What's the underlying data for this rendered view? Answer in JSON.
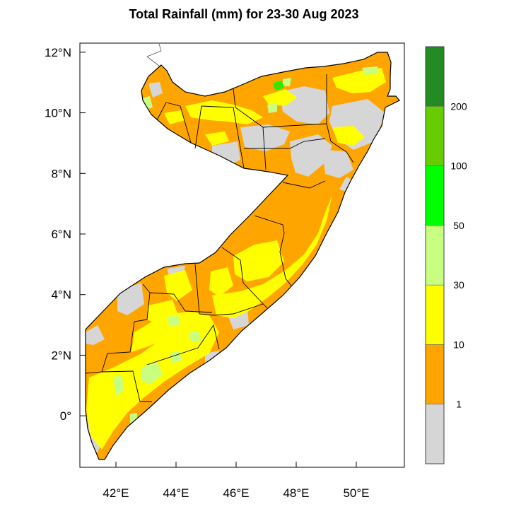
{
  "title": "Total Rainfall (mm) for 23-30 Aug 2023",
  "map": {
    "lon_range": [
      40.8,
      51.6
    ],
    "lat_range": [
      -1.7,
      12.3
    ],
    "x_ticks": [
      {
        "lon": 42,
        "label": "42°E"
      },
      {
        "lon": 44,
        "label": "44°E"
      },
      {
        "lon": 46,
        "label": "46°E"
      },
      {
        "lon": 48,
        "label": "48°E"
      },
      {
        "lon": 50,
        "label": "50°E"
      }
    ],
    "y_ticks": [
      {
        "lat": 12,
        "label": "12°N"
      },
      {
        "lat": 10,
        "label": "10°N"
      },
      {
        "lat": 8,
        "label": "8°N"
      },
      {
        "lat": 6,
        "label": "6°N"
      },
      {
        "lat": 4,
        "label": "4°N"
      },
      {
        "lat": 2,
        "label": "2°N"
      },
      {
        "lat": 0,
        "label": "0°"
      }
    ]
  },
  "colorbar": {
    "bins": [
      {
        "name": "below-1",
        "color": "#d6d6d6"
      },
      {
        "name": "1-10",
        "color": "#ffa500"
      },
      {
        "name": "10-30",
        "color": "#ffff00"
      },
      {
        "name": "30-50",
        "color": "#c8ff80"
      },
      {
        "name": "50-100",
        "color": "#00ff00"
      },
      {
        "name": "100-200",
        "color": "#66cd00"
      },
      {
        "name": "above-200",
        "color": "#228b22"
      }
    ],
    "labels": [
      "1",
      "10",
      "30",
      "50",
      "100",
      "200"
    ]
  },
  "colors": {
    "no_rain": "#d6d6d6",
    "light": "#ffa500",
    "moderate": "#ffff00",
    "heavy": "#c8ff80",
    "very_heavy": "#00ff00",
    "extreme": "#66cd00",
    "border": "#000000"
  }
}
